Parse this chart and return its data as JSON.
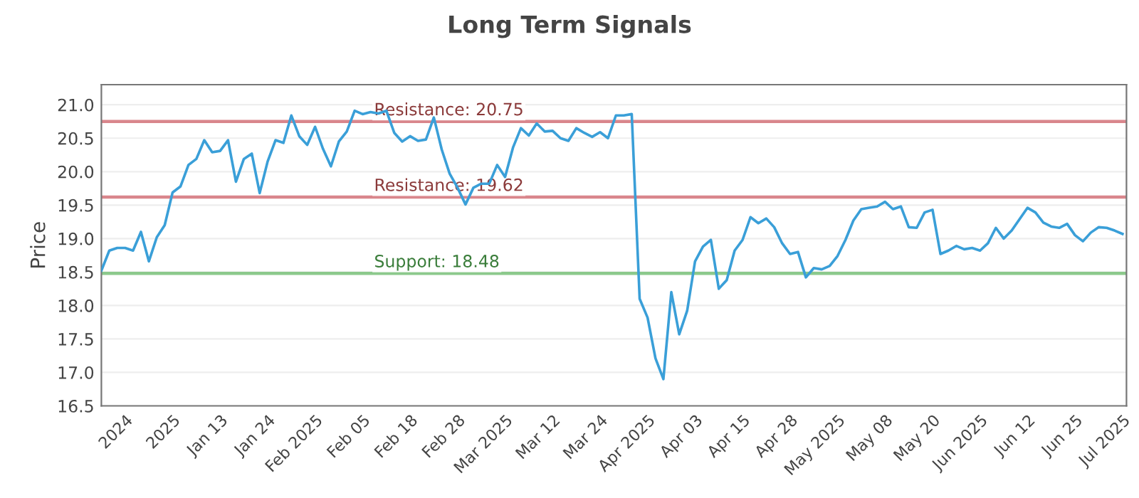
{
  "chart_data": {
    "type": "line",
    "title": "Long Term Signals",
    "ylabel": "Price",
    "categories": [
      null,
      null,
      null,
      "2024",
      null,
      null,
      null,
      null,
      null,
      "2025",
      null,
      null,
      null,
      null,
      null,
      "Jan 13",
      null,
      null,
      null,
      null,
      null,
      "Jan 24",
      null,
      null,
      null,
      null,
      null,
      "Feb 2025",
      null,
      null,
      null,
      null,
      null,
      "Feb 05",
      null,
      null,
      null,
      null,
      null,
      "Feb 18",
      null,
      null,
      null,
      null,
      null,
      "Feb 28",
      null,
      null,
      null,
      null,
      null,
      "Mar 2025",
      null,
      null,
      null,
      null,
      null,
      "Mar 12",
      null,
      null,
      null,
      null,
      null,
      "Mar 24",
      null,
      null,
      null,
      null,
      null,
      "Apr 2025",
      null,
      null,
      null,
      null,
      null,
      "Apr 03",
      null,
      null,
      null,
      null,
      null,
      "Apr 15",
      null,
      null,
      null,
      null,
      null,
      "Apr 28",
      null,
      null,
      null,
      null,
      null,
      "May 2025",
      null,
      null,
      null,
      null,
      null,
      "May 08",
      null,
      null,
      null,
      null,
      null,
      "May 20",
      null,
      null,
      null,
      null,
      null,
      "Jun 2025",
      null,
      null,
      null,
      null,
      null,
      "Jun 12",
      null,
      null,
      null,
      null,
      null,
      "Jun 25",
      null,
      null,
      null,
      null,
      null,
      "Jul 2025"
    ],
    "series": [
      {
        "color": "#3a9fd8",
        "values": [
          18.52,
          18.82,
          18.86,
          18.86,
          18.82,
          19.1,
          18.66,
          19.02,
          19.2,
          19.69,
          19.78,
          20.1,
          20.19,
          20.47,
          20.29,
          20.31,
          20.47,
          19.85,
          20.19,
          20.27,
          19.68,
          20.15,
          20.47,
          20.43,
          20.84,
          20.53,
          20.4,
          20.67,
          20.34,
          20.08,
          20.45,
          20.6,
          20.91,
          20.86,
          20.89,
          20.87,
          20.91,
          20.58,
          20.45,
          20.53,
          20.46,
          20.48,
          20.81,
          20.33,
          19.97,
          19.76,
          19.51,
          19.76,
          19.82,
          19.82,
          20.1,
          19.92,
          20.36,
          20.65,
          20.54,
          20.72,
          20.6,
          20.61,
          20.5,
          20.46,
          20.65,
          20.58,
          20.52,
          20.59,
          20.5,
          20.84,
          20.84,
          20.86,
          18.1,
          17.82,
          17.21,
          16.9,
          18.2,
          17.57,
          17.92,
          18.66,
          18.88,
          18.98,
          18.25,
          18.38,
          18.82,
          18.98,
          19.32,
          19.23,
          19.3,
          19.17,
          18.93,
          18.77,
          18.8,
          18.42,
          18.56,
          18.54,
          18.59,
          18.74,
          18.98,
          19.27,
          19.44,
          19.46,
          19.48,
          19.55,
          19.44,
          19.48,
          19.17,
          19.16,
          19.39,
          19.43,
          18.77,
          18.82,
          18.89,
          18.84,
          18.86,
          18.82,
          18.93,
          19.16,
          19.0,
          19.12,
          19.29,
          19.46,
          19.39,
          19.24,
          19.18,
          19.16,
          19.22,
          19.05,
          18.96,
          19.09,
          19.17,
          19.16,
          19.12,
          19.07
        ]
      }
    ],
    "ylim": [
      16.5,
      21.3
    ],
    "yticks": [
      16.5,
      {
        "value": 17,
        "label": "17.0"
      },
      17.5,
      {
        "value": 18,
        "label": "18.0"
      },
      18.5,
      {
        "value": 19,
        "label": "19.0"
      },
      19.5,
      {
        "value": 20,
        "label": "20.0"
      },
      20.5,
      {
        "value": 21,
        "label": "21.0"
      }
    ],
    "ref_lines": [
      {
        "axis": "y",
        "value": 20.75,
        "label": "Resistance: 20.75",
        "color": "#d9868c"
      },
      {
        "axis": "y",
        "value": 19.62,
        "label": "Resistance: 19.62",
        "color": "#d9868c"
      },
      {
        "axis": "y",
        "value": 18.48,
        "label": "Support: 18.48",
        "color": "#8cc98c"
      }
    ],
    "grid": "y",
    "line_style": "solid"
  }
}
